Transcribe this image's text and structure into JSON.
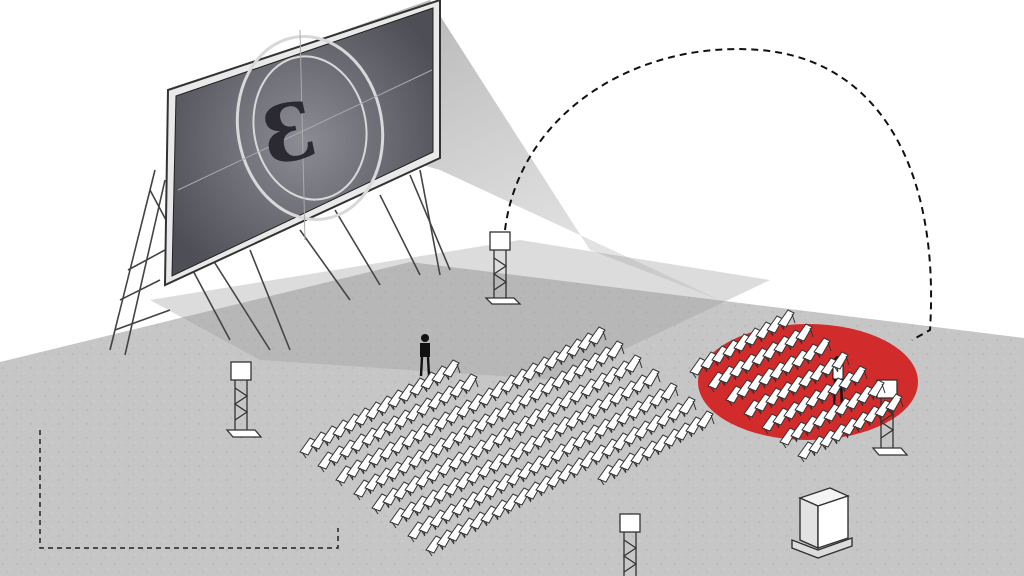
{
  "screen": {
    "countdown_digit": "3"
  },
  "colors": {
    "ground": "#c9c9c9",
    "ground_dark": "#a8a8a8",
    "screen_face": "#5d5d66",
    "highlight": "#d22b2b",
    "lines": "#333333"
  },
  "icons": {
    "speaker_tower": "speaker-tower-icon",
    "person": "person-icon",
    "projector": "projector-booth-icon"
  }
}
